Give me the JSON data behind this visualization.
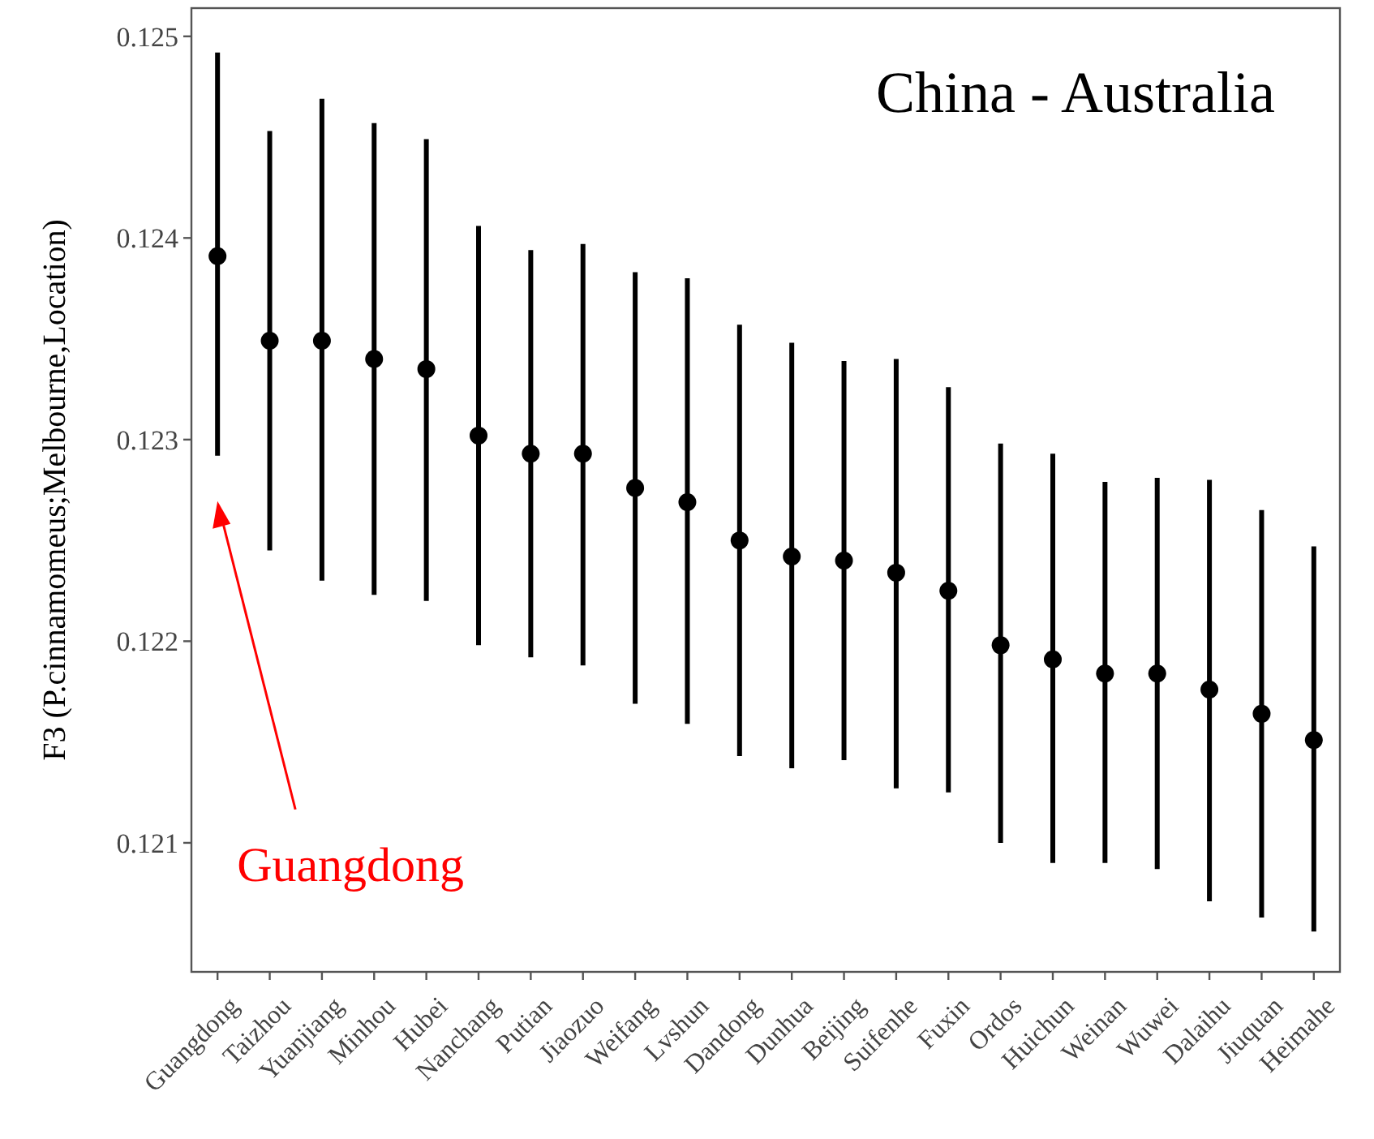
{
  "chart_data": {
    "type": "scatter",
    "title": "China - Australia",
    "ylabel": "F3 (P.cinnamomeus;Melbourne,Location)",
    "categories": [
      "Guangdong",
      "Taizhou",
      "Yuanjiang",
      "Minhou",
      "Hubei",
      "Nanchang",
      "Putian",
      "Jiaozuo",
      "Weifang",
      "Lvshun",
      "Dandong",
      "Dunhua",
      "Beijing",
      "Suifenhe",
      "Fuxin",
      "Ordos",
      "Huichun",
      "Weinan",
      "Wuwei",
      "Dalaihu",
      "Jiuquan",
      "Heimahe"
    ],
    "series": [
      {
        "color": "#000000",
        "values": [
          0.12391,
          0.12349,
          0.12349,
          0.1234,
          0.12335,
          0.12302,
          0.12293,
          0.12293,
          0.12276,
          0.12269,
          0.1225,
          0.12242,
          0.1224,
          0.12234,
          0.12225,
          0.12198,
          0.12191,
          0.12184,
          0.12184,
          0.12176,
          0.12164,
          0.12151
        ],
        "errors": [
          [
            0.12292,
            0.12492
          ],
          [
            0.12245,
            0.12453
          ],
          [
            0.1223,
            0.12469
          ],
          [
            0.12223,
            0.12457
          ],
          [
            0.1222,
            0.12449
          ],
          [
            0.12198,
            0.12406
          ],
          [
            0.12192,
            0.12394
          ],
          [
            0.12188,
            0.12397
          ],
          [
            0.12169,
            0.12383
          ],
          [
            0.12159,
            0.1238
          ],
          [
            0.12143,
            0.12357
          ],
          [
            0.12137,
            0.12348
          ],
          [
            0.12141,
            0.12339
          ],
          [
            0.12127,
            0.1234
          ],
          [
            0.12125,
            0.12326
          ],
          [
            0.121,
            0.12298
          ],
          [
            0.1209,
            0.12293
          ],
          [
            0.1209,
            0.12279
          ],
          [
            0.12087,
            0.12281
          ],
          [
            0.12071,
            0.1228
          ],
          [
            0.12063,
            0.12265
          ],
          [
            0.12056,
            0.12247
          ]
        ]
      }
    ],
    "ylim": [
      0.12036,
      0.12514
    ],
    "yticks": [
      0.121,
      0.122,
      0.123,
      0.124,
      0.125
    ],
    "grid": false,
    "marker": "circle",
    "annotations": [
      "Guangdong"
    ]
  }
}
